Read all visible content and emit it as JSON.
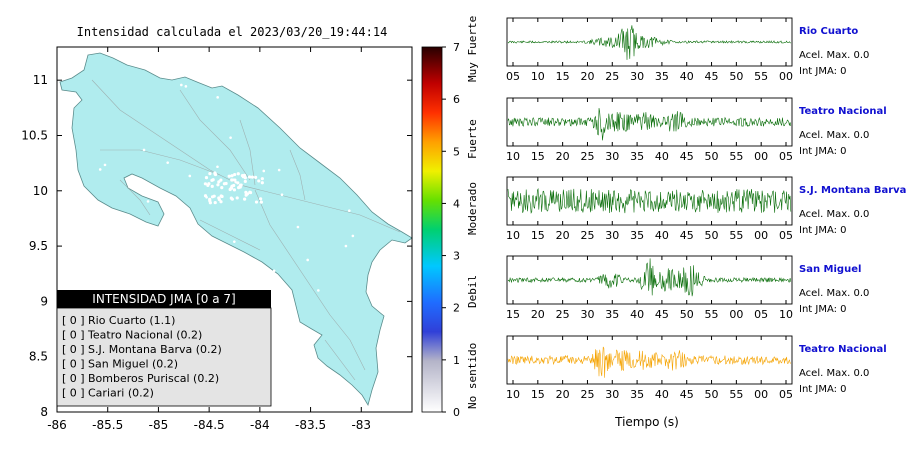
{
  "map": {
    "title": "Intensidad calculada el 2023/03/20_19:44:14",
    "lon_ticks": [
      "-86",
      "-85.5",
      "-85",
      "-84.5",
      "-84",
      "-83.5",
      "-83"
    ],
    "lat_ticks": [
      "11",
      "10.5",
      "10",
      "9.5",
      "9",
      "8.5",
      "8"
    ],
    "lon_range": [
      -86,
      -82.5
    ],
    "lat_range": [
      8,
      11.3
    ],
    "land_color": "#b0ecee",
    "legend": {
      "title": "INTENSIDAD JMA [0 a 7]",
      "items": [
        {
          "value": "[ 0 ]",
          "label": "Rio Cuarto (1.1)"
        },
        {
          "value": "[ 0 ]",
          "label": "Teatro Nacional (0.2)"
        },
        {
          "value": "[ 0 ]",
          "label": "S.J. Montana Barva (0.2)"
        },
        {
          "value": "[ 0 ]",
          "label": "San Miguel (0.2)"
        },
        {
          "value": "[ 0 ]",
          "label": "Bomberos Puriscal (0.2)"
        },
        {
          "value": "[ 0 ]",
          "label": "Cariari (0.2)"
        }
      ]
    }
  },
  "colorbar": {
    "ticks": [
      "0",
      "1",
      "2",
      "3",
      "4",
      "5",
      "6",
      "7"
    ],
    "range": [
      0,
      7
    ],
    "bands": [
      "No sentido",
      "Debil",
      "Moderado",
      "Fuerte",
      "Muy Fuerte"
    ]
  },
  "chart_data": {
    "type": "line",
    "xlabel": "Tiempo (s)",
    "series": [
      {
        "name": "Rio Cuarto",
        "accel": "Acel. Max. 0.0",
        "jma": "Int JMA: 0",
        "color": "#0a6e0a",
        "x_ticks": [
          "05",
          "10",
          "15",
          "20",
          "25",
          "30",
          "35",
          "40",
          "45",
          "50",
          "55",
          "00"
        ],
        "noise": 0.05,
        "bursts": [
          [
            30,
            0.95,
            2.5
          ],
          [
            28,
            0.35,
            6
          ],
          [
            34,
            0.3,
            5
          ]
        ]
      },
      {
        "name": "Teatro Nacional",
        "accel": "Acel. Max. 0.0",
        "jma": "Int JMA: 0",
        "color": "#0a6e0a",
        "x_ticks": [
          "10",
          "15",
          "20",
          "25",
          "30",
          "35",
          "40",
          "45",
          "50",
          "55",
          "00",
          "05"
        ],
        "noise": 0.2,
        "bursts": [
          [
            24,
            0.9,
            2
          ],
          [
            28,
            0.5,
            6
          ],
          [
            34,
            0.45,
            5
          ],
          [
            41,
            0.55,
            3
          ]
        ]
      },
      {
        "name": "S.J. Montana Barva",
        "accel": "Acel. Max. 0.0",
        "jma": "Int JMA: 0",
        "color": "#0a6e0a",
        "x_ticks": [
          "10",
          "15",
          "20",
          "25",
          "30",
          "35",
          "40",
          "45",
          "50",
          "55",
          "00",
          "05"
        ],
        "noise": 0.55,
        "bursts": [
          [
            14,
            0.45,
            3
          ],
          [
            31,
            0.4,
            2
          ],
          [
            45,
            0.35,
            3
          ]
        ]
      },
      {
        "name": "San Miguel",
        "accel": "Acel. Max. 0.0",
        "jma": "Int JMA: 0",
        "color": "#0a6e0a",
        "x_ticks": [
          "15",
          "20",
          "25",
          "30",
          "35",
          "40",
          "45",
          "50",
          "55",
          "00",
          "05",
          "10"
        ],
        "noise": 0.1,
        "bursts": [
          [
            26,
            0.4,
            3
          ],
          [
            35,
            1.0,
            2
          ],
          [
            39,
            0.6,
            3
          ],
          [
            44,
            0.85,
            3
          ]
        ]
      },
      {
        "name": "Teatro Nacional",
        "accel": "Acel. Max. 0.0",
        "jma": "Int JMA: 0",
        "color": "#f5a300",
        "x_ticks": [
          "10",
          "15",
          "20",
          "25",
          "30",
          "35",
          "40",
          "45",
          "50",
          "55",
          "00",
          "05"
        ],
        "noise": 0.2,
        "bursts": [
          [
            24,
            0.9,
            2
          ],
          [
            28,
            0.5,
            6
          ],
          [
            34,
            0.45,
            5
          ],
          [
            41,
            0.55,
            3
          ]
        ]
      }
    ]
  }
}
